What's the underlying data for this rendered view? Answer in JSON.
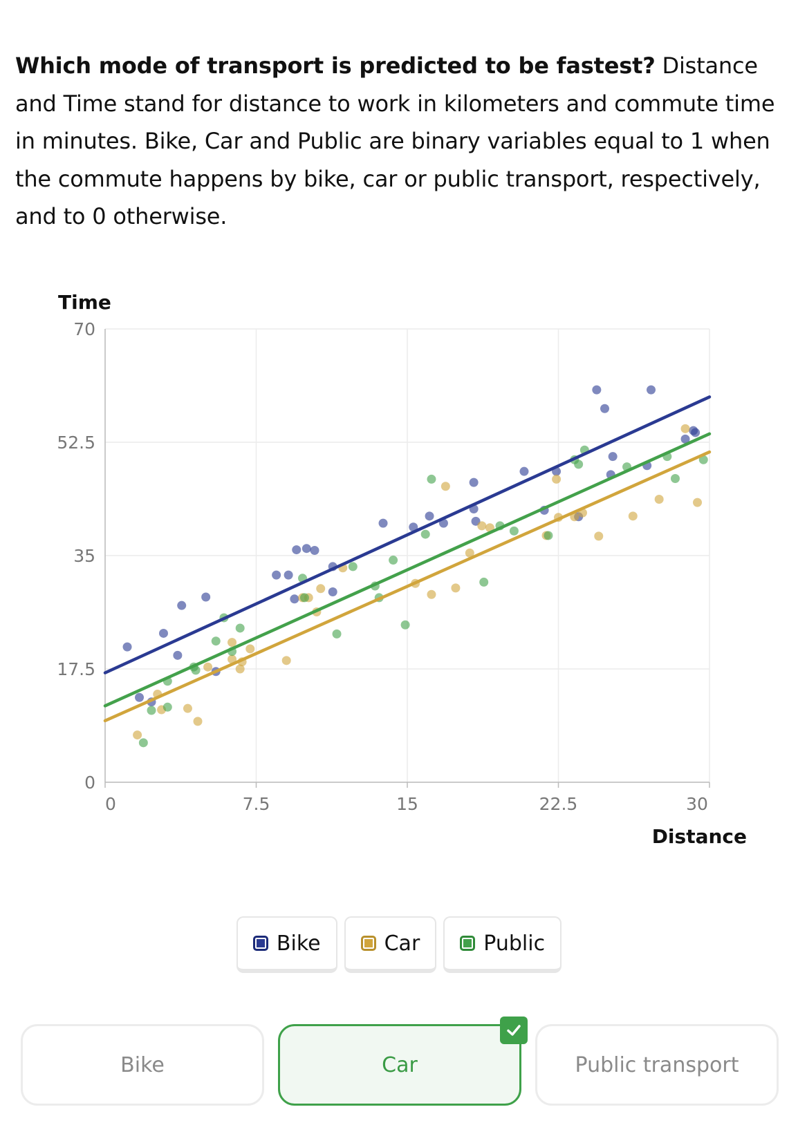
{
  "question": {
    "bold": "Which mode of transport is predicted to be fastest?",
    "rest": " Distance and Time stand for distance to work in kilometers and commute time in minutes. Bike, Car and Public are binary variables equal to 1 when the commute happens by bike, car or public transport, respectively, and to 0 otherwise."
  },
  "chart_data": {
    "type": "scatter",
    "xlabel": "Distance",
    "ylabel": "Time",
    "xlim": [
      0,
      30
    ],
    "ylim": [
      0,
      70
    ],
    "xticks": [
      "0",
      "7.5",
      "15",
      "22.5",
      "30"
    ],
    "yticks": [
      "0",
      "17.5",
      "35",
      "52.5",
      "70"
    ],
    "grid": true,
    "series": [
      {
        "name": "Bike",
        "color": "#2a3a92",
        "line": [
          [
            0,
            16.9
          ],
          [
            30,
            59.5
          ]
        ],
        "points": [
          [
            1.1,
            20.9
          ],
          [
            1.7,
            13.1
          ],
          [
            2.3,
            12.4
          ],
          [
            2.9,
            23.0
          ],
          [
            3.6,
            19.6
          ],
          [
            3.8,
            27.3
          ],
          [
            5.0,
            28.6
          ],
          [
            5.5,
            17.1
          ],
          [
            8.5,
            32.0
          ],
          [
            9.1,
            32.0
          ],
          [
            9.4,
            28.3
          ],
          [
            9.5,
            35.9
          ],
          [
            10.0,
            36.1
          ],
          [
            10.4,
            35.8
          ],
          [
            11.3,
            33.3
          ],
          [
            11.3,
            29.4
          ],
          [
            13.8,
            40.0
          ],
          [
            15.3,
            39.4
          ],
          [
            16.1,
            41.1
          ],
          [
            16.8,
            40.0
          ],
          [
            18.3,
            42.2
          ],
          [
            18.3,
            46.3
          ],
          [
            18.4,
            40.3
          ],
          [
            20.8,
            48.0
          ],
          [
            21.8,
            42.0
          ],
          [
            22.4,
            48.0
          ],
          [
            23.5,
            41.0
          ],
          [
            24.4,
            60.6
          ],
          [
            24.8,
            57.7
          ],
          [
            25.1,
            47.5
          ],
          [
            25.2,
            50.3
          ],
          [
            26.9,
            48.9
          ],
          [
            27.1,
            60.6
          ],
          [
            28.8,
            53.0
          ],
          [
            29.2,
            54.3
          ],
          [
            29.3,
            54.0
          ]
        ]
      },
      {
        "name": "Car",
        "color": "#d1a53c",
        "line": [
          [
            0,
            9.5
          ],
          [
            30,
            51.0
          ]
        ],
        "points": [
          [
            1.6,
            7.3
          ],
          [
            2.6,
            13.6
          ],
          [
            2.8,
            11.2
          ],
          [
            4.1,
            11.4
          ],
          [
            4.6,
            9.4
          ],
          [
            5.1,
            17.8
          ],
          [
            6.3,
            21.6
          ],
          [
            6.3,
            19.0
          ],
          [
            6.7,
            17.5
          ],
          [
            6.8,
            18.6
          ],
          [
            7.2,
            20.6
          ],
          [
            9.0,
            18.8
          ],
          [
            9.8,
            28.5
          ],
          [
            10.1,
            28.5
          ],
          [
            10.5,
            26.3
          ],
          [
            10.7,
            29.9
          ],
          [
            11.8,
            33.1
          ],
          [
            15.4,
            30.7
          ],
          [
            16.2,
            29.0
          ],
          [
            16.9,
            45.7
          ],
          [
            17.4,
            30.0
          ],
          [
            18.1,
            35.4
          ],
          [
            18.7,
            39.6
          ],
          [
            19.1,
            39.3
          ],
          [
            21.9,
            38.1
          ],
          [
            22.4,
            46.8
          ],
          [
            22.5,
            40.9
          ],
          [
            23.3,
            41.0
          ],
          [
            23.7,
            41.6
          ],
          [
            24.5,
            38.0
          ],
          [
            26.2,
            41.1
          ],
          [
            27.5,
            43.7
          ],
          [
            28.8,
            54.6
          ],
          [
            29.4,
            43.2
          ]
        ]
      },
      {
        "name": "Public",
        "color": "#43a14b",
        "line": [
          [
            0,
            11.8
          ],
          [
            30,
            53.8
          ]
        ],
        "points": [
          [
            1.9,
            6.1
          ],
          [
            2.3,
            11.1
          ],
          [
            3.1,
            15.6
          ],
          [
            3.1,
            11.6
          ],
          [
            4.4,
            17.8
          ],
          [
            4.5,
            17.3
          ],
          [
            5.5,
            21.8
          ],
          [
            5.9,
            25.4
          ],
          [
            6.3,
            20.2
          ],
          [
            6.7,
            23.8
          ],
          [
            9.8,
            31.5
          ],
          [
            9.9,
            28.5
          ],
          [
            11.5,
            22.9
          ],
          [
            12.3,
            33.3
          ],
          [
            13.4,
            30.3
          ],
          [
            13.6,
            28.5
          ],
          [
            14.3,
            34.3
          ],
          [
            14.9,
            24.3
          ],
          [
            15.9,
            38.3
          ],
          [
            16.2,
            46.8
          ],
          [
            18.8,
            30.9
          ],
          [
            19.6,
            39.6
          ],
          [
            20.3,
            38.8
          ],
          [
            22.0,
            38.1
          ],
          [
            23.3,
            49.8
          ],
          [
            23.5,
            49.1
          ],
          [
            23.8,
            51.3
          ],
          [
            25.9,
            48.7
          ],
          [
            27.9,
            50.3
          ],
          [
            28.3,
            46.9
          ],
          [
            29.7,
            49.8
          ]
        ]
      }
    ]
  },
  "legend": [
    "Bike",
    "Car",
    "Public"
  ],
  "answers": [
    {
      "label": "Bike",
      "selected": false
    },
    {
      "label": "Car",
      "selected": true
    },
    {
      "label": "Public transport",
      "selected": false
    }
  ]
}
